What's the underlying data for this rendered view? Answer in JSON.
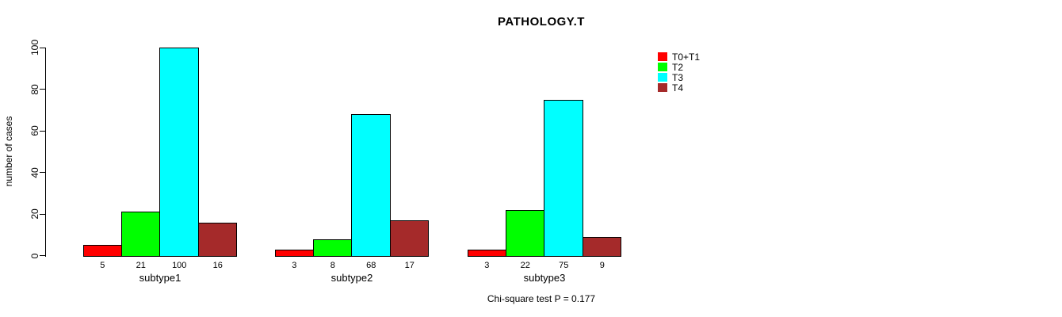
{
  "background_color": "#FFFFFF",
  "chart_data": {
    "type": "bar",
    "title": "PATHOLOGY.T",
    "ylabel": "number of cases",
    "xlabel": "",
    "categories": [
      "subtype1",
      "subtype2",
      "subtype3"
    ],
    "series": [
      {
        "name": "T0+T1",
        "color": "#FF0000",
        "values": [
          5,
          3,
          3
        ]
      },
      {
        "name": "T2",
        "color": "#00FF00",
        "values": [
          21,
          8,
          22
        ]
      },
      {
        "name": "T3",
        "color": "#00FFFF",
        "values": [
          100,
          68,
          75
        ]
      },
      {
        "name": "T4",
        "color": "#A52A2A",
        "values": [
          16,
          17,
          9
        ]
      }
    ],
    "bar_value_labels": [
      [
        "5",
        "21",
        "100",
        "16"
      ],
      [
        "3",
        "8",
        "68",
        "17"
      ],
      [
        "3",
        "22",
        "75",
        "9"
      ]
    ],
    "yticks": [
      0,
      20,
      40,
      60,
      80,
      100
    ],
    "ylim": [
      0,
      100
    ],
    "grid": false,
    "legend_position": "top-right",
    "annotation": "Chi-square test P = 0.177"
  }
}
